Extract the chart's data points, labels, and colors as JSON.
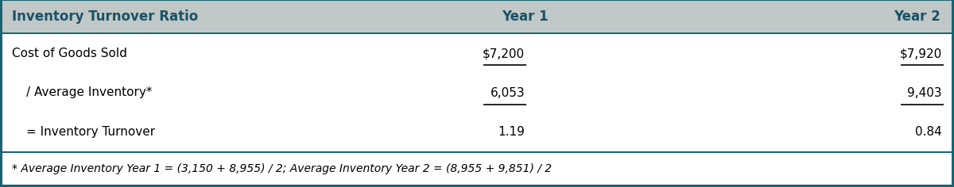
{
  "title": "Inventory Turnover Ratio",
  "col_year1": "Year 1",
  "col_year2": "Year 2",
  "rows": [
    {
      "label": "Cost of Goods Sold",
      "val1": "$7,200",
      "val2": "$7,920",
      "underline1": true,
      "underline2": true,
      "indent": false
    },
    {
      "label": "/ Average Inventory*",
      "val1": "6,053",
      "val2": "9,403",
      "underline1": true,
      "underline2": true,
      "indent": true
    },
    {
      "label": "= Inventory Turnover",
      "val1": "1.19",
      "val2": "0.84",
      "underline1": false,
      "underline2": false,
      "indent": true
    }
  ],
  "footnote": "* Average Inventory Year 1 = (3,150 + 8,955) / 2; Average Inventory Year 2 = (8,955 + 9,851) / 2",
  "header_bg": "#c0c8c8",
  "header_text_color": "#1a5266",
  "border_color": "#1a6370",
  "row_bg": "#ffffff",
  "table_text_color": "#000000",
  "figsize": [
    12.0,
    2.36
  ],
  "dpi": 100,
  "border_thick": 3,
  "sep_thick": 2,
  "header_fontsize": 12,
  "row_fontsize": 11,
  "foot_fontsize": 10
}
